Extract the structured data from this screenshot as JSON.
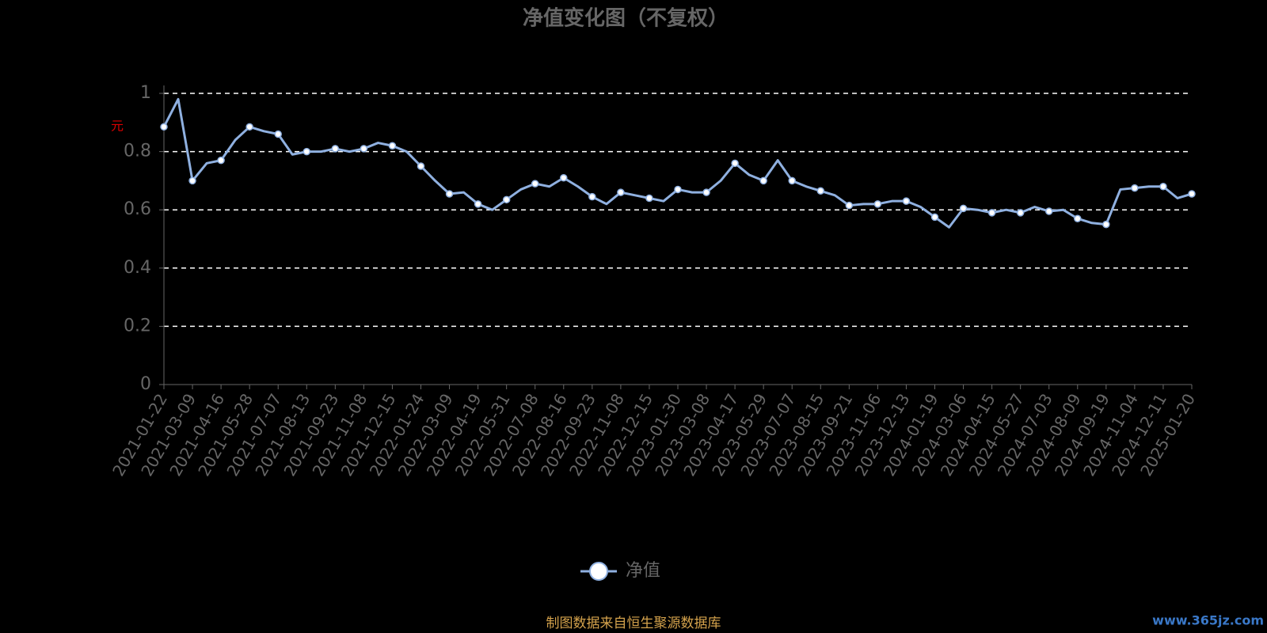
{
  "chart_data": {
    "type": "line",
    "title": "净值变化图（不复权）",
    "y_label": "元",
    "categories": [
      "2021-01-22",
      null,
      "2021-03-09",
      null,
      "2021-04-16",
      null,
      "2021-05-28",
      null,
      "2021-07-07",
      null,
      "2021-08-13",
      null,
      "2021-09-23",
      null,
      "2021-11-08",
      null,
      "2021-12-15",
      null,
      "2022-01-24",
      null,
      "2022-03-09",
      null,
      "2022-04-19",
      null,
      "2022-05-31",
      null,
      "2022-07-08",
      null,
      "2022-08-16",
      null,
      "2022-09-23",
      null,
      "2022-11-08",
      null,
      "2022-12-15",
      null,
      "2023-01-30",
      null,
      "2023-03-08",
      null,
      "2023-04-17",
      null,
      "2023-05-29",
      null,
      "2023-07-07",
      null,
      "2023-08-15",
      null,
      "2023-09-21",
      null,
      "2023-11-06",
      null,
      "2023-12-13",
      null,
      "2024-01-19",
      null,
      "2024-03-06",
      null,
      "2024-04-15",
      null,
      "2024-05-27",
      null,
      "2024-07-03",
      null,
      "2024-08-09",
      null,
      "2024-09-19",
      null,
      "2024-11-04",
      null,
      "2024-12-11",
      null,
      "2025-01-20"
    ],
    "series": [
      {
        "name": "净值",
        "color": "#8fb0e0",
        "values": [
          0.885,
          0.98,
          0.7,
          0.76,
          0.77,
          0.84,
          0.885,
          0.87,
          0.86,
          0.79,
          0.8,
          0.8,
          0.81,
          0.8,
          0.81,
          0.83,
          0.82,
          0.8,
          0.75,
          0.7,
          0.655,
          0.66,
          0.62,
          0.6,
          0.635,
          0.67,
          0.69,
          0.68,
          0.71,
          0.68,
          0.645,
          0.62,
          0.66,
          0.65,
          0.64,
          0.63,
          0.67,
          0.66,
          0.66,
          0.7,
          0.76,
          0.72,
          0.7,
          0.77,
          0.7,
          0.68,
          0.665,
          0.65,
          0.615,
          0.62,
          0.62,
          0.63,
          0.63,
          0.61,
          0.575,
          0.54,
          0.605,
          0.6,
          0.59,
          0.6,
          0.59,
          0.61,
          0.595,
          0.6,
          0.57,
          0.555,
          0.55,
          0.67,
          0.675,
          0.68,
          0.68,
          0.64,
          0.655
        ]
      }
    ],
    "ylim": [
      0,
      1
    ],
    "yticks": [
      0,
      0.2,
      0.4,
      0.6,
      0.8,
      1
    ],
    "grid": true,
    "footer": "制图数据来自恒生聚源数据库",
    "watermark": "www.365jz.com"
  }
}
